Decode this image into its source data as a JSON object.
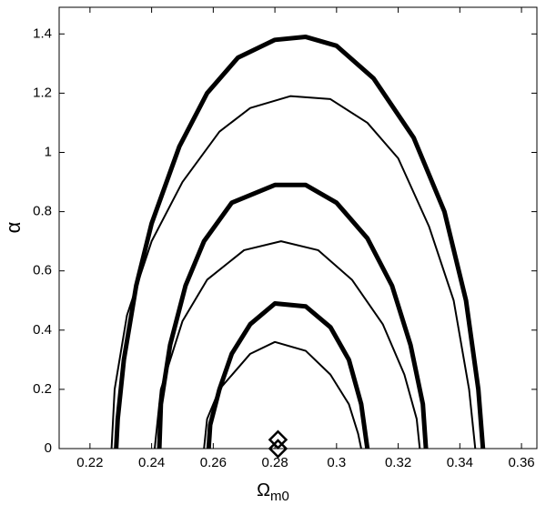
{
  "chart_data": {
    "type": "line",
    "xlabel": "Ω",
    "xlabel_sub": "m0",
    "ylabel": "α",
    "xlim": [
      0.21,
      0.365
    ],
    "ylim": [
      0,
      1.49
    ],
    "xticks": [
      0.22,
      0.24,
      0.26,
      0.28,
      0.3,
      0.32,
      0.34,
      0.36
    ],
    "yticks": [
      0,
      0.2,
      0.4,
      0.6,
      0.8,
      1,
      1.2,
      1.4
    ],
    "series": [
      {
        "color": "#000000",
        "linewidth": 5,
        "x": [
          0.2285,
          0.229,
          0.231,
          0.235,
          0.24,
          0.249,
          0.258,
          0.268,
          0.28,
          0.29,
          0.3,
          0.312,
          0.325,
          0.335,
          0.342,
          0.346,
          0.3475
        ],
        "values": [
          0,
          0.1,
          0.3,
          0.55,
          0.76,
          1.02,
          1.2,
          1.32,
          1.38,
          1.39,
          1.36,
          1.25,
          1.05,
          0.8,
          0.5,
          0.2,
          0
        ]
      },
      {
        "color": "#000000",
        "linewidth": 2,
        "x": [
          0.227,
          0.228,
          0.232,
          0.24,
          0.25,
          0.262,
          0.272,
          0.285,
          0.298,
          0.31,
          0.32,
          0.33,
          0.338,
          0.343,
          0.345
        ],
        "values": [
          0,
          0.2,
          0.45,
          0.7,
          0.9,
          1.07,
          1.15,
          1.19,
          1.18,
          1.1,
          0.98,
          0.75,
          0.5,
          0.2,
          0
        ]
      },
      {
        "color": "#000000",
        "linewidth": 5,
        "x": [
          0.2425,
          0.243,
          0.246,
          0.251,
          0.257,
          0.266,
          0.28,
          0.29,
          0.3,
          0.31,
          0.318,
          0.324,
          0.328,
          0.329
        ],
        "values": [
          0,
          0.15,
          0.35,
          0.55,
          0.7,
          0.83,
          0.89,
          0.89,
          0.83,
          0.71,
          0.55,
          0.35,
          0.15,
          0
        ]
      },
      {
        "color": "#000000",
        "linewidth": 2,
        "x": [
          0.241,
          0.243,
          0.25,
          0.258,
          0.27,
          0.282,
          0.294,
          0.305,
          0.315,
          0.322,
          0.326,
          0.327
        ],
        "values": [
          0,
          0.2,
          0.43,
          0.57,
          0.67,
          0.7,
          0.67,
          0.57,
          0.42,
          0.25,
          0.1,
          0
        ]
      },
      {
        "color": "#000000",
        "linewidth": 5,
        "x": [
          0.2585,
          0.259,
          0.262,
          0.266,
          0.272,
          0.28,
          0.29,
          0.298,
          0.304,
          0.308,
          0.31
        ],
        "values": [
          0,
          0.08,
          0.2,
          0.32,
          0.42,
          0.49,
          0.48,
          0.41,
          0.3,
          0.15,
          0
        ]
      },
      {
        "color": "#000000",
        "linewidth": 2,
        "x": [
          0.257,
          0.258,
          0.262,
          0.272,
          0.28,
          0.29,
          0.298,
          0.304,
          0.307,
          0.308
        ],
        "values": [
          0,
          0.1,
          0.2,
          0.32,
          0.36,
          0.33,
          0.25,
          0.15,
          0.05,
          0
        ]
      },
      {
        "color": "#000000",
        "marker": "diamond",
        "x": [
          0.281,
          0.281
        ],
        "values": [
          0.03,
          0
        ]
      }
    ]
  }
}
